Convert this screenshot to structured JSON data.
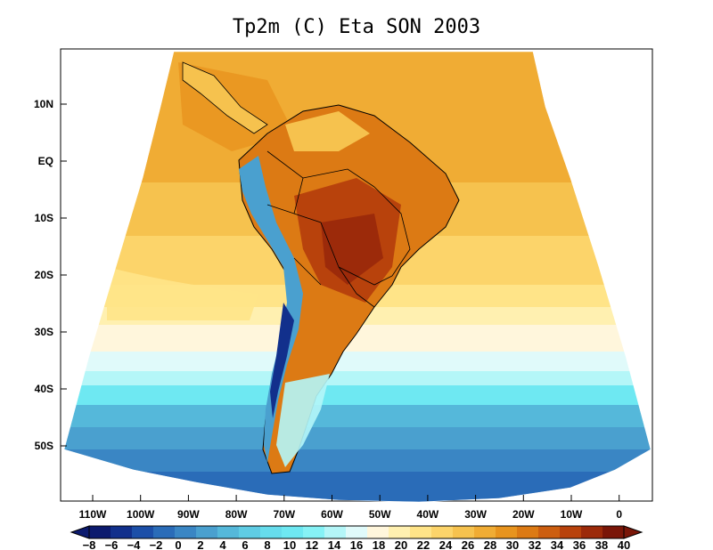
{
  "map": {
    "title": "Tp2m (C) Eta SON 2003",
    "latitude_labels": [
      "10N",
      "EQ",
      "10S",
      "20S",
      "30S",
      "40S",
      "50S"
    ],
    "longitude_labels": [
      "110W",
      "100W",
      "90W",
      "80W",
      "70W",
      "60W",
      "50W",
      "40W",
      "30W",
      "20W",
      "10W",
      "0"
    ],
    "colorbar": {
      "labels": [
        "−8",
        "−6",
        "−4",
        "−2",
        "0",
        "2",
        "4",
        "6",
        "8",
        "10",
        "12",
        "14",
        "16",
        "18",
        "20",
        "22",
        "24",
        "26",
        "28",
        "30",
        "32",
        "34",
        "36",
        "38",
        "40"
      ],
      "colors": [
        "#0b1a6e",
        "#12308c",
        "#1c4fa8",
        "#2a6cb8",
        "#3a86c4",
        "#4aa0cf",
        "#55b8da",
        "#5fcce4",
        "#66dcec",
        "#6ee8f2",
        "#86f2f6",
        "#b4f6f8",
        "#e0fafa",
        "#fff6dc",
        "#fff0b0",
        "#ffe488",
        "#fcd46a",
        "#f6c24e",
        "#f0ac34",
        "#e8941e",
        "#dc7a14",
        "#cc5e10",
        "#b8420c",
        "#9c2a0a",
        "#7a1608"
      ]
    },
    "colors": {
      "ocean_warm": "#f0ac34",
      "ocean_mid": "#f6c24e",
      "ocean_cool": "#fcd46a",
      "land_hot": "#c8581a",
      "andes_cold": "#2a6cb8",
      "border": "#000000"
    }
  }
}
